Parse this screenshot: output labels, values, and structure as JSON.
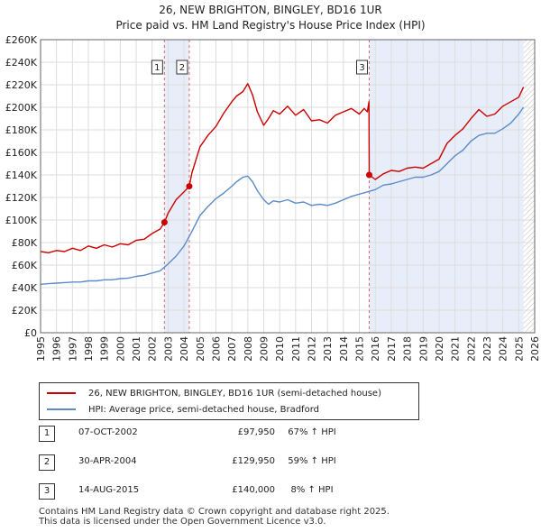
{
  "header": {
    "title": "26, NEW BRIGHTON, BINGLEY, BD16 1UR",
    "subtitle": "Price paid vs. HM Land Registry's House Price Index (HPI)"
  },
  "chart_data": {
    "type": "line",
    "title": "26, NEW BRIGHTON, BINGLEY, BD16 1UR",
    "subtitle": "Price paid vs. HM Land Registry's House Price Index (HPI)",
    "xlim": [
      1995,
      2026
    ],
    "ylim": [
      0,
      260000
    ],
    "x_ticks": [
      1995,
      1996,
      1997,
      1998,
      1999,
      2000,
      2001,
      2002,
      2003,
      2004,
      2005,
      2006,
      2007,
      2008,
      2009,
      2010,
      2011,
      2012,
      2013,
      2014,
      2015,
      2016,
      2017,
      2018,
      2019,
      2020,
      2021,
      2022,
      2023,
      2024,
      2025,
      2026
    ],
    "y_ticks": [
      0,
      20000,
      40000,
      60000,
      80000,
      100000,
      120000,
      140000,
      160000,
      180000,
      200000,
      220000,
      240000,
      260000
    ],
    "y_tick_labels": [
      "£0",
      "£20K",
      "£40K",
      "£60K",
      "£80K",
      "£100K",
      "£120K",
      "£140K",
      "£160K",
      "£180K",
      "£200K",
      "£220K",
      "£240K",
      "£260K"
    ],
    "colors": {
      "property": "#cc0000",
      "hpi": "#5b8cc8",
      "shade": "#e8eef9",
      "forecast_hatch": "#bbbbbb"
    },
    "shaded_periods": [
      [
        2002.77,
        2004.33
      ],
      [
        2015.62,
        2025.3
      ]
    ],
    "forecast_from": 2025.3,
    "series": [
      {
        "name": "26, NEW BRIGHTON, BINGLEY, BD16 1UR (semi-detached house)",
        "x": [
          1995,
          1995.5,
          1996,
          1996.5,
          1997,
          1997.5,
          1998,
          1998.5,
          1999,
          1999.5,
          2000,
          2000.5,
          2001,
          2001.5,
          2002,
          2002.5,
          2002.77,
          2003,
          2003.5,
          2004,
          2004.33,
          2004.5,
          2005,
          2005.5,
          2006,
          2006.5,
          2007,
          2007.3,
          2007.7,
          2008,
          2008.3,
          2008.6,
          2009,
          2009.3,
          2009.6,
          2010,
          2010.5,
          2011,
          2011.5,
          2012,
          2012.5,
          2013,
          2013.5,
          2014,
          2014.5,
          2015,
          2015.3,
          2015.5,
          2015.6,
          2015.62,
          2016,
          2016.5,
          2017,
          2017.5,
          2018,
          2018.5,
          2019,
          2019.5,
          2020,
          2020.5,
          2021,
          2021.5,
          2022,
          2022.5,
          2023,
          2023.5,
          2024,
          2024.5,
          2025,
          2025.3
        ],
        "values": [
          72000,
          71000,
          73000,
          72000,
          75000,
          73000,
          77000,
          75000,
          78000,
          76000,
          79000,
          78000,
          82000,
          83000,
          88000,
          92000,
          97950,
          106000,
          118000,
          125000,
          129950,
          142000,
          165000,
          175000,
          183000,
          195000,
          205000,
          210000,
          214000,
          221000,
          211000,
          196000,
          184000,
          190000,
          197000,
          194000,
          201000,
          193000,
          198000,
          188000,
          189000,
          186000,
          193000,
          196000,
          199000,
          194000,
          199000,
          196000,
          205000,
          140000,
          136000,
          141000,
          144000,
          143000,
          146000,
          147000,
          146000,
          150000,
          154000,
          168000,
          175000,
          181000,
          190000,
          198000,
          192000,
          194000,
          201000,
          205000,
          209000,
          218000
        ]
      },
      {
        "name": "HPI: Average price, semi-detached house, Bradford",
        "x": [
          1995,
          1995.5,
          1996,
          1996.5,
          1997,
          1997.5,
          1998,
          1998.5,
          1999,
          1999.5,
          2000,
          2000.5,
          2001,
          2001.5,
          2002,
          2002.5,
          2003,
          2003.5,
          2004,
          2004.5,
          2005,
          2005.5,
          2006,
          2006.5,
          2007,
          2007.3,
          2007.7,
          2008,
          2008.3,
          2008.6,
          2009,
          2009.3,
          2009.6,
          2010,
          2010.5,
          2011,
          2011.5,
          2012,
          2012.5,
          2013,
          2013.5,
          2014,
          2014.5,
          2015,
          2015.5,
          2016,
          2016.5,
          2017,
          2017.5,
          2018,
          2018.5,
          2019,
          2019.5,
          2020,
          2020.5,
          2021,
          2021.5,
          2022,
          2022.5,
          2023,
          2023.5,
          2024,
          2024.5,
          2025,
          2025.3
        ],
        "values": [
          43000,
          43500,
          44000,
          44500,
          45000,
          45000,
          46000,
          46000,
          47000,
          47000,
          48000,
          48500,
          50000,
          51000,
          53000,
          55000,
          61000,
          68000,
          77000,
          90000,
          104000,
          112000,
          119000,
          124000,
          130000,
          134000,
          138000,
          139000,
          134000,
          126000,
          118000,
          114000,
          117000,
          116000,
          118000,
          115000,
          116000,
          113000,
          114000,
          113000,
          115000,
          118000,
          121000,
          123000,
          125000,
          127000,
          131000,
          132000,
          134000,
          136000,
          138000,
          138000,
          140000,
          143000,
          150000,
          157000,
          162000,
          170000,
          175000,
          177000,
          177000,
          181000,
          186000,
          194000,
          200000
        ]
      }
    ],
    "sales": [
      {
        "label": "1",
        "x": 2002.77,
        "value": 97950
      },
      {
        "label": "2",
        "x": 2004.33,
        "value": 129950
      },
      {
        "label": "3",
        "x": 2015.62,
        "value": 140000
      }
    ]
  },
  "legend": {
    "property": "26, NEW BRIGHTON, BINGLEY, BD16 1UR (semi-detached house)",
    "hpi": "HPI: Average price, semi-detached house, Bradford"
  },
  "sales_table": [
    {
      "num": "1",
      "date": "07-OCT-2002",
      "price": "£97,950",
      "hpi": "67% ↑ HPI"
    },
    {
      "num": "2",
      "date": "30-APR-2004",
      "price": "£129,950",
      "hpi": "59% ↑ HPI"
    },
    {
      "num": "3",
      "date": "14-AUG-2015",
      "price": "£140,000",
      "hpi": "8% ↑ HPI"
    }
  ],
  "footer": {
    "line1": "Contains HM Land Registry data © Crown copyright and database right 2025.",
    "line2": "This data is licensed under the Open Government Licence v3.0."
  }
}
